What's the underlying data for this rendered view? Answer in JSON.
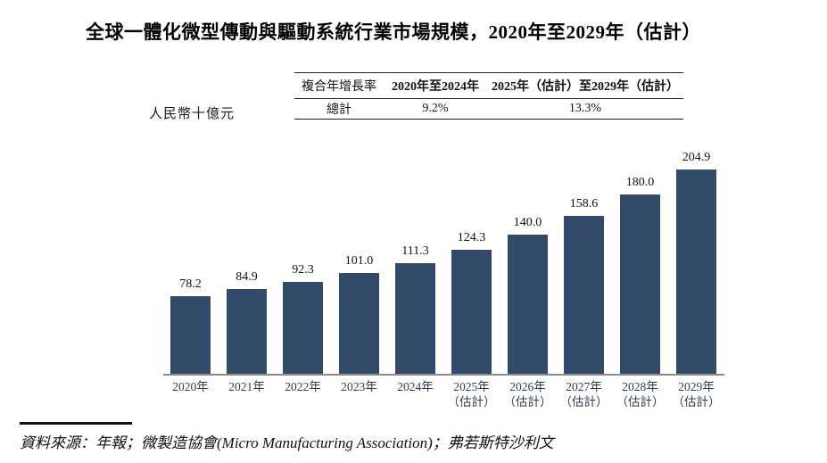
{
  "page": {
    "title": "全球一體化微型傳動與驅動系統行業市場規模，2020年至2029年（估計）",
    "unit_label": "人民幣十億元",
    "source": "資料來源：年報；微製造協會(Micro Manufacturing Association)；弗若斯特沙利文"
  },
  "cagr_table": {
    "headers": [
      "複合年增長率",
      "2020年至2024年",
      "2025年（估計）至2029年（估計）"
    ],
    "rows": [
      [
        "總計",
        "9.2%",
        "13.3%"
      ]
    ]
  },
  "chart_data": {
    "type": "bar",
    "title": "全球一體化微型傳動與驅動系統行業市場規模，2020年至2029年（估計）",
    "ylabel": "人民幣十億元",
    "categories": [
      "2020年",
      "2021年",
      "2022年",
      "2023年",
      "2024年",
      "2025年",
      "2026年",
      "2027年",
      "2028年",
      "2029年"
    ],
    "category_sublabels": [
      "",
      "",
      "",
      "",
      "",
      "（估計）",
      "（估計）",
      "（估計）",
      "（估計）",
      "（估計）"
    ],
    "values": [
      78.2,
      84.9,
      92.3,
      101.0,
      111.3,
      124.3,
      140.0,
      158.6,
      180.0,
      204.9
    ],
    "value_labels": [
      "78.2",
      "84.9",
      "92.3",
      "101.0",
      "111.3",
      "124.3",
      "140.0",
      "158.6",
      "180.0",
      "204.9"
    ],
    "bar_color": "#334A6B",
    "axis_color": "#8C8C8C",
    "ylim": [
      0,
      230
    ],
    "grid": false,
    "legend": null
  }
}
